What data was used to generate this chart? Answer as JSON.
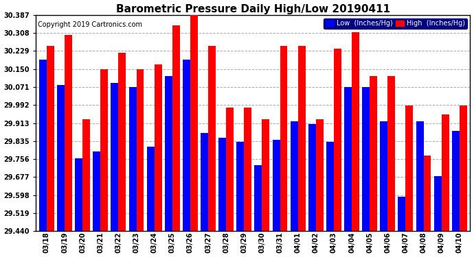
{
  "title": "Barometric Pressure Daily High/Low 20190411",
  "copyright": "Copyright 2019 Cartronics.com",
  "legend_low_label": "Low  (Inches/Hg)",
  "legend_high_label": "High  (Inches/Hg)",
  "dates": [
    "03/18",
    "03/19",
    "03/20",
    "03/21",
    "03/22",
    "03/23",
    "03/24",
    "03/25",
    "03/26",
    "03/27",
    "03/28",
    "03/29",
    "03/30",
    "03/31",
    "04/01",
    "04/02",
    "04/03",
    "04/04",
    "04/05",
    "04/06",
    "04/07",
    "04/08",
    "04/09",
    "04/10"
  ],
  "low_values": [
    30.19,
    30.08,
    29.76,
    29.79,
    30.09,
    30.07,
    29.81,
    30.12,
    30.19,
    29.87,
    29.85,
    29.83,
    29.73,
    29.84,
    29.92,
    29.91,
    29.83,
    30.07,
    30.07,
    29.92,
    29.59,
    29.92,
    29.68,
    29.88
  ],
  "high_values": [
    30.25,
    30.3,
    29.93,
    30.15,
    30.22,
    30.15,
    30.17,
    30.34,
    30.39,
    30.25,
    29.98,
    29.98,
    29.93,
    30.25,
    30.25,
    29.93,
    30.24,
    30.31,
    30.12,
    30.12,
    29.99,
    29.77,
    29.95,
    29.99
  ],
  "ylim_min": 29.44,
  "ylim_max": 30.387,
  "yticks": [
    29.44,
    29.519,
    29.598,
    29.677,
    29.756,
    29.835,
    29.913,
    29.992,
    30.071,
    30.15,
    30.229,
    30.308,
    30.387
  ],
  "low_color": "#0000ff",
  "high_color": "#ff0000",
  "background_color": "#ffffff",
  "grid_color": "#aaaaaa",
  "title_fontsize": 11,
  "copyright_fontsize": 7,
  "tick_fontsize": 7,
  "bar_width": 0.42
}
